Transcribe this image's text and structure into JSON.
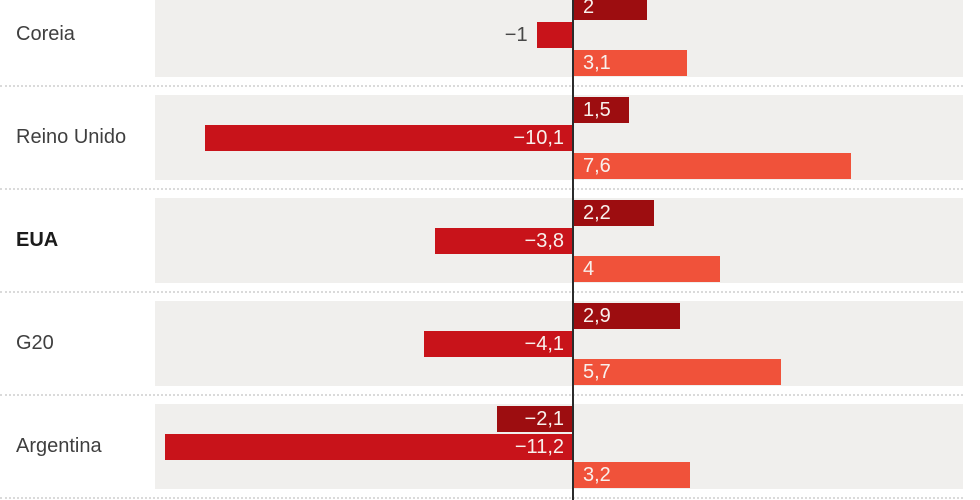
{
  "chart_data": {
    "type": "bar",
    "orientation": "horizontal",
    "categories": [
      "Coreia",
      "Reino Unido",
      "EUA",
      "G20",
      "Argentina"
    ],
    "emphasized_category": "EUA",
    "series": [
      {
        "name": "dark-red-series",
        "color": "#9d0d10",
        "values": [
          2,
          1.5,
          2.2,
          2.9,
          -2.1
        ],
        "labels": [
          "2",
          "1,5",
          "2,2",
          "2,9",
          "−2,1"
        ]
      },
      {
        "name": "red-series",
        "color": "#c8131a",
        "values": [
          -1,
          -10.1,
          -3.8,
          -4.1,
          -11.2
        ],
        "labels": [
          "−1",
          "−10,1",
          "−3,8",
          "−4,1",
          "−11,2"
        ]
      },
      {
        "name": "orange-series",
        "color": "#f0523a",
        "values": [
          3.1,
          7.6,
          4,
          5.7,
          3.2
        ],
        "labels": [
          "3,1",
          "7,6",
          "4",
          "5,7",
          "3,2"
        ]
      }
    ],
    "xlim": [
      -11.5,
      10.7
    ],
    "value_label_decimal_separator": ",",
    "gridlines": false,
    "zero_axis": true,
    "legend": "none (cropped out of view)"
  },
  "colors": {
    "band_background": "#f0efed",
    "axis_line": "#2b2b2b",
    "separator": "#dadada",
    "category_text": "#3f3f3f",
    "category_text_emphasized": "#1b1b1b",
    "value_text_inside": "#f8f0ec",
    "value_text_outside": "#474747"
  }
}
